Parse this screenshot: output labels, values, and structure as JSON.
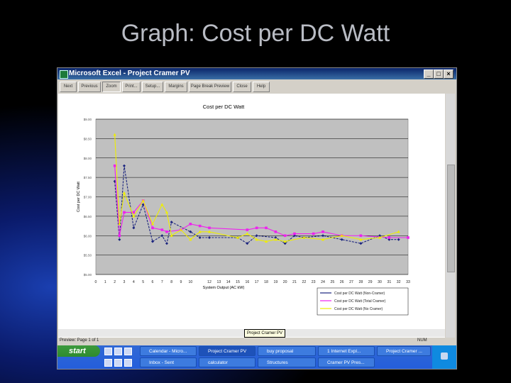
{
  "slide": {
    "title": "Graph: Cost per DC Watt"
  },
  "window": {
    "title": "Microsoft Excel - Project Cramer PV"
  },
  "toolbar": {
    "buttons": [
      "Next",
      "Previous",
      "Zoom",
      "Print...",
      "Setup...",
      "Margins",
      "Page Break Preview",
      "Close",
      "Help"
    ]
  },
  "status": {
    "left": "Preview: Page 1 of 1",
    "right": "NUM",
    "tooltip": "Project Cramer PV"
  },
  "taskbar": {
    "start": "start",
    "row1": [
      "Calendar - Micro...",
      "Project Cramer PV",
      "buy proposal",
      "1 Internet Expl...",
      "Project Cramer ..."
    ],
    "row2": [
      "Inbox - Sent",
      "calculator",
      "Structures",
      "Cramer PV Pres..."
    ]
  },
  "chart_data": {
    "type": "line",
    "title": "Cost per DC Watt",
    "xlabel": "System Output (AC kW)",
    "ylabel": "Cost per DC Watt",
    "x_ticks": [
      0,
      1,
      2,
      3,
      4,
      5,
      6,
      7,
      8,
      9,
      10,
      12,
      13,
      14,
      15,
      16,
      17,
      18,
      19,
      20,
      21,
      22,
      23,
      24,
      25,
      26,
      27,
      28,
      29,
      30,
      31,
      32,
      33
    ],
    "y_ticks": [
      "$9.00",
      "$8.50",
      "$8.00",
      "$7.50",
      "$7.00",
      "$6.50",
      "$6.00",
      "$5.50",
      "$5.00"
    ],
    "ylim": [
      5,
      9
    ],
    "series": [
      {
        "name": "Cost per DC Watt (Non-Cramer)",
        "color": "#1a237e",
        "points": [
          [
            2,
            7.4
          ],
          [
            2.5,
            5.9
          ],
          [
            3,
            7.8
          ],
          [
            4,
            6.2
          ],
          [
            5,
            6.8
          ],
          [
            6,
            5.85
          ],
          [
            7,
            6.0
          ],
          [
            7.5,
            5.8
          ],
          [
            8,
            6.35
          ],
          [
            10,
            6.1
          ],
          [
            11,
            5.95
          ],
          [
            12,
            5.95
          ],
          [
            15,
            5.95
          ],
          [
            16,
            5.8
          ],
          [
            17,
            6.0
          ],
          [
            19,
            5.95
          ],
          [
            20,
            5.8
          ],
          [
            21,
            6.0
          ],
          [
            22,
            5.95
          ],
          [
            24,
            6.0
          ],
          [
            26,
            5.9
          ],
          [
            28,
            5.8
          ],
          [
            30,
            6.0
          ],
          [
            31,
            5.9
          ],
          [
            32,
            5.9
          ]
        ]
      },
      {
        "name": "Cost per DC Watt (Total Cramer)",
        "color": "#ee22ee",
        "points": [
          [
            2,
            7.8
          ],
          [
            2.5,
            6.0
          ],
          [
            3,
            6.6
          ],
          [
            4,
            6.6
          ],
          [
            5,
            6.9
          ],
          [
            6,
            6.2
          ],
          [
            7,
            6.15
          ],
          [
            7.5,
            6.1
          ],
          [
            9,
            6.15
          ],
          [
            10,
            6.3
          ],
          [
            11,
            6.25
          ],
          [
            12,
            6.2
          ],
          [
            16,
            6.15
          ],
          [
            17,
            6.2
          ],
          [
            18,
            6.2
          ],
          [
            19,
            6.1
          ],
          [
            20,
            6.0
          ],
          [
            21,
            6.05
          ],
          [
            23,
            6.05
          ],
          [
            24,
            6.1
          ],
          [
            26,
            6.0
          ],
          [
            28,
            6.0
          ],
          [
            31,
            5.95
          ],
          [
            33,
            5.95
          ]
        ]
      },
      {
        "name": "Cost per DC Watt (No Cramer)",
        "color": "#eeee00",
        "points": [
          [
            2,
            8.6
          ],
          [
            2.5,
            6.3
          ],
          [
            3,
            7.1
          ],
          [
            4,
            6.5
          ],
          [
            5,
            6.9
          ],
          [
            6,
            6.3
          ],
          [
            7,
            6.8
          ],
          [
            7.5,
            6.6
          ],
          [
            8,
            6.0
          ],
          [
            9,
            6.15
          ],
          [
            10,
            5.9
          ],
          [
            11,
            6.1
          ],
          [
            12,
            6.1
          ],
          [
            15,
            5.95
          ],
          [
            16,
            6.05
          ],
          [
            17,
            5.9
          ],
          [
            18,
            5.85
          ],
          [
            19,
            5.9
          ],
          [
            20,
            5.85
          ],
          [
            22,
            5.95
          ],
          [
            24,
            5.9
          ],
          [
            26,
            6.0
          ],
          [
            28,
            5.9
          ],
          [
            30,
            5.95
          ],
          [
            32,
            6.1
          ]
        ]
      }
    ],
    "legend": "bottom-right",
    "plot_background": "#c0c0c0",
    "grid": true
  }
}
